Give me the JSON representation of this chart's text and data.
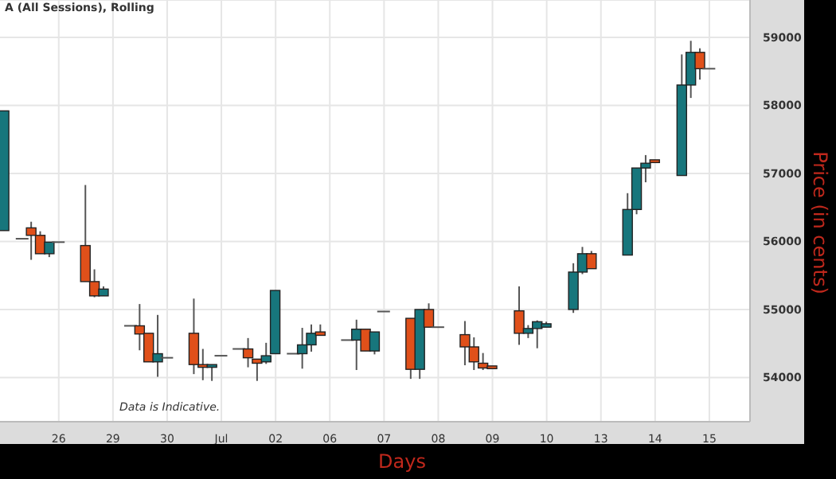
{
  "chart_data": {
    "type": "candlestick",
    "title": "A (All Sessions), Rolling",
    "xlabel": "Days",
    "ylabel": "Price (in cents)",
    "annotations": [
      "Data is Indicative."
    ],
    "ylim": [
      53350,
      59550
    ],
    "yticks": [
      54000,
      55000,
      56000,
      57000,
      58000,
      59000
    ],
    "grid": true,
    "legend": false,
    "categories": [
      null,
      null,
      null,
      null,
      null,
      null,
      "26",
      null,
      null,
      null,
      null,
      null,
      "29",
      null,
      null,
      null,
      null,
      null,
      "30",
      null,
      null,
      null,
      null,
      null,
      "Jul",
      null,
      null,
      null,
      null,
      null,
      "02",
      null,
      null,
      null,
      null,
      null,
      "06",
      null,
      null,
      null,
      null,
      null,
      "07",
      null,
      null,
      null,
      null,
      null,
      "08",
      null,
      null,
      null,
      null,
      null,
      "09",
      null,
      null,
      null,
      null,
      null,
      "10",
      null,
      null,
      null,
      null,
      null,
      "13",
      null,
      null,
      null,
      null,
      null,
      "14",
      null,
      null,
      null,
      null,
      null,
      "15",
      null,
      null,
      null,
      null
    ],
    "ohlc": [
      [
        56160,
        57920,
        56160,
        57920
      ],
      null,
      [
        56040,
        56040,
        56040,
        56040
      ],
      [
        56200,
        56290,
        55730,
        56090
      ],
      [
        56090,
        56150,
        55820,
        55820
      ],
      [
        55820,
        55990,
        55770,
        55990
      ],
      [
        55990,
        55990,
        55990,
        55990
      ],
      null,
      null,
      [
        55940,
        56830,
        55410,
        55410
      ],
      [
        55410,
        55590,
        55180,
        55200
      ],
      [
        55200,
        55340,
        55200,
        55300
      ],
      null,
      null,
      [
        54760,
        54760,
        54760,
        54760
      ],
      [
        54760,
        55080,
        54400,
        54640
      ],
      [
        54650,
        54650,
        54230,
        54230
      ],
      [
        54230,
        54920,
        54010,
        54350
      ],
      [
        54290,
        54290,
        54290,
        54290
      ],
      null,
      null,
      [
        54650,
        55160,
        54050,
        54190
      ],
      [
        54190,
        54420,
        53960,
        54150
      ],
      [
        54150,
        54190,
        53950,
        54190
      ],
      [
        54320,
        54320,
        54320,
        54320
      ],
      null,
      [
        54420,
        54420,
        54420,
        54420
      ],
      [
        54420,
        54580,
        54150,
        54290
      ],
      [
        54270,
        54270,
        53950,
        54210
      ],
      [
        54230,
        54510,
        54200,
        54320
      ],
      [
        54350,
        55280,
        54350,
        55280
      ],
      null,
      [
        54350,
        54350,
        54350,
        54350
      ],
      [
        54350,
        54730,
        54130,
        54480
      ],
      [
        54480,
        54780,
        54380,
        54650
      ],
      [
        54670,
        54780,
        54620,
        54620
      ],
      null,
      null,
      [
        54550,
        54550,
        54550,
        54550
      ],
      [
        54550,
        54850,
        54110,
        54710
      ],
      [
        54710,
        54710,
        54390,
        54390
      ],
      [
        54390,
        54670,
        54340,
        54670
      ],
      [
        54970,
        54970,
        54970,
        54970
      ],
      null,
      null,
      [
        54870,
        54870,
        53980,
        54120
      ],
      [
        54120,
        55000,
        53980,
        55000
      ],
      [
        55000,
        55090,
        54740,
        54740
      ],
      [
        54740,
        54740,
        54740,
        54740
      ],
      null,
      null,
      [
        54630,
        54830,
        54180,
        54450
      ],
      [
        54450,
        54590,
        54110,
        54230
      ],
      [
        54210,
        54360,
        54110,
        54140
      ],
      [
        54170,
        54170,
        54130,
        54130
      ],
      null,
      null,
      [
        54980,
        55340,
        54480,
        54650
      ],
      [
        54650,
        54770,
        54580,
        54720
      ],
      [
        54720,
        54840,
        54430,
        54820
      ],
      [
        54740,
        54820,
        54740,
        54790
      ],
      null,
      null,
      [
        55000,
        55680,
        54950,
        55550
      ],
      [
        55550,
        55920,
        55520,
        55820
      ],
      [
        55820,
        55860,
        55600,
        55600
      ],
      null,
      null,
      null,
      [
        55800,
        56710,
        55800,
        56470
      ],
      [
        56470,
        57080,
        56400,
        57080
      ],
      [
        57080,
        57270,
        56870,
        57150
      ],
      [
        57200,
        57200,
        57160,
        57160
      ],
      null,
      null,
      [
        56970,
        58750,
        56970,
        58300
      ],
      [
        58300,
        58950,
        58110,
        58780
      ],
      [
        58780,
        58840,
        58380,
        58540
      ],
      [
        58540,
        58540,
        58540,
        58540
      ],
      null,
      null,
      null,
      null
    ],
    "colors": [
      "#17767c",
      null,
      "#555555",
      "#e0501a",
      "#e0501a",
      "#17767c",
      "#555555",
      null,
      null,
      "#e0501a",
      "#e0501a",
      "#17767c",
      null,
      null,
      "#555555",
      "#e0501a",
      "#e0501a",
      "#17767c",
      "#555555",
      null,
      null,
      "#e0501a",
      "#e0501a",
      "#17767c",
      "#555555",
      null,
      "#555555",
      "#e0501a",
      "#e0501a",
      "#17767c",
      "#17767c",
      null,
      "#555555",
      "#17767c",
      "#17767c",
      "#e0501a",
      null,
      null,
      "#555555",
      "#17767c",
      "#e0501a",
      "#17767c",
      "#555555",
      null,
      null,
      "#e0501a",
      "#17767c",
      "#e0501a",
      "#555555",
      null,
      null,
      "#e0501a",
      "#e0501a",
      "#e0501a",
      "#e0501a",
      null,
      null,
      "#e0501a",
      "#17767c",
      "#17767c",
      "#17767c",
      null,
      null,
      "#17767c",
      "#17767c",
      "#e0501a",
      null,
      null,
      null,
      "#17767c",
      "#17767c",
      "#17767c",
      "#e0501a",
      null,
      null,
      "#17767c",
      "#17767c",
      "#e0501a",
      "#555555",
      null,
      null,
      null,
      null
    ]
  }
}
